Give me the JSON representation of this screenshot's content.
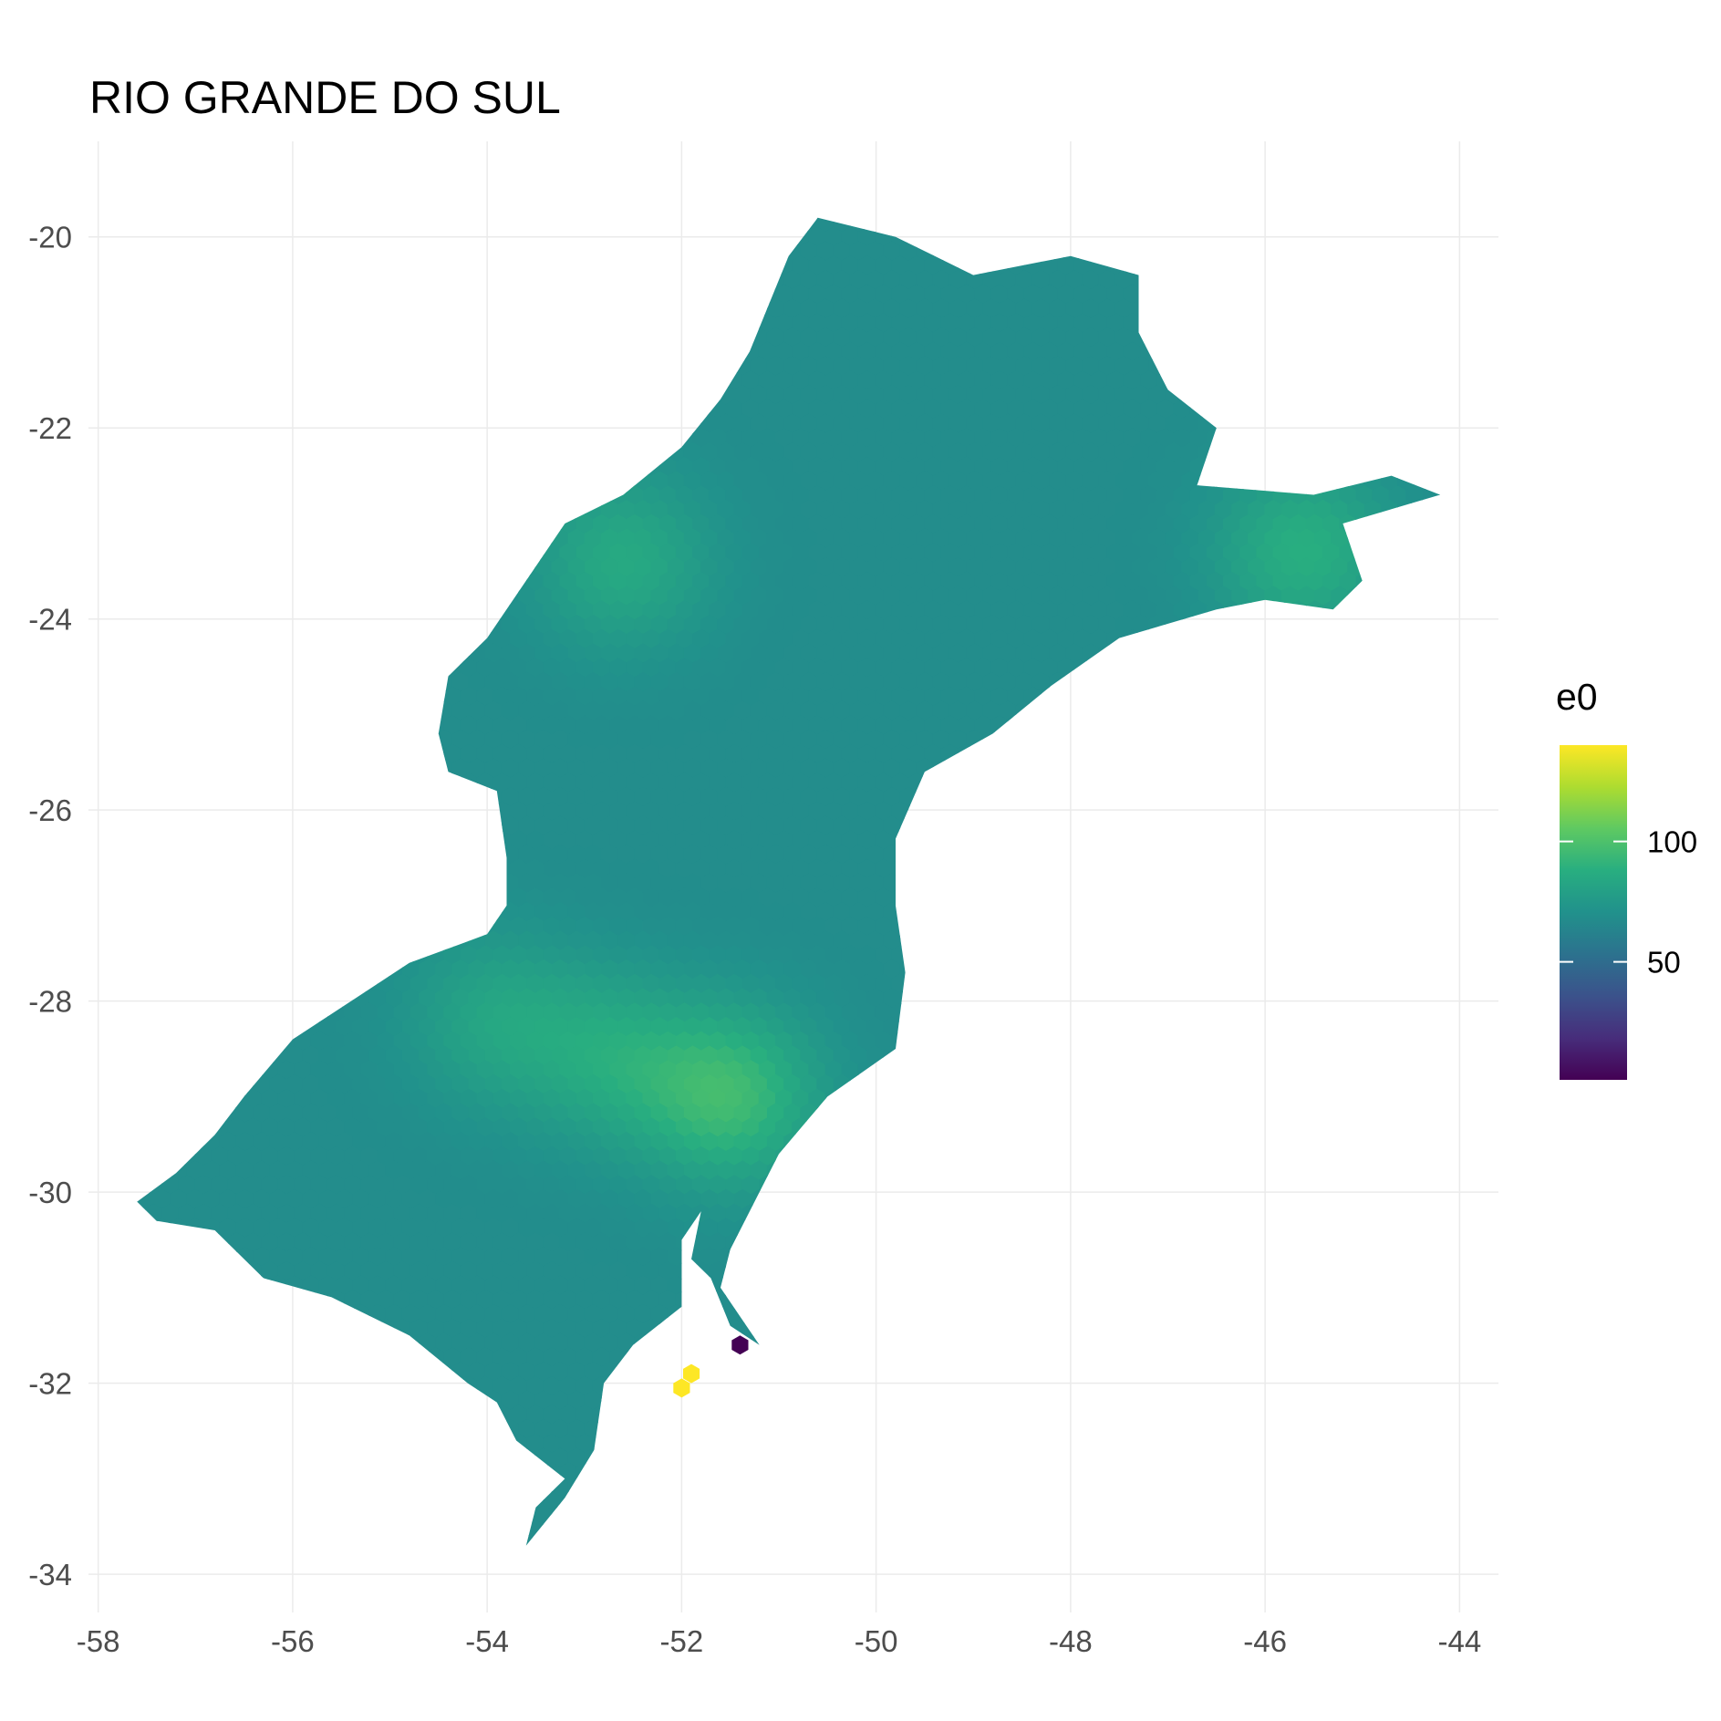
{
  "title": "RIO GRANDE DO SUL",
  "chart_data": {
    "type": "hexbin map",
    "title": "RIO GRANDE DO SUL",
    "xlabel": "",
    "ylabel": "",
    "x_ticks": [
      -58,
      -56,
      -54,
      -52,
      -50,
      -48,
      -46,
      -44
    ],
    "y_ticks": [
      -20,
      -22,
      -24,
      -26,
      -28,
      -30,
      -32,
      -34
    ],
    "xlim": [
      -58.1,
      -43.6
    ],
    "ylim": [
      -34.4,
      -19.0
    ],
    "grid": true,
    "fill_variable": "e0",
    "fill_scale": "viridis",
    "fill_range": [
      1,
      140
    ],
    "legend": {
      "title": "e0",
      "breaks": [
        50,
        100
      ],
      "position": "right"
    },
    "region_outline": [
      [
        -50.6,
        -19.8
      ],
      [
        -49.8,
        -20.0
      ],
      [
        -49.0,
        -20.4
      ],
      [
        -48.0,
        -20.2
      ],
      [
        -47.3,
        -20.4
      ],
      [
        -47.3,
        -21.0
      ],
      [
        -47.0,
        -21.6
      ],
      [
        -46.5,
        -22.0
      ],
      [
        -46.7,
        -22.6
      ],
      [
        -45.5,
        -22.7
      ],
      [
        -44.7,
        -22.5
      ],
      [
        -44.2,
        -22.7
      ],
      [
        -45.2,
        -23.0
      ],
      [
        -45.0,
        -23.6
      ],
      [
        -45.3,
        -23.9
      ],
      [
        -46.0,
        -23.8
      ],
      [
        -46.5,
        -23.9
      ],
      [
        -47.5,
        -24.2
      ],
      [
        -48.2,
        -24.7
      ],
      [
        -48.8,
        -25.2
      ],
      [
        -49.5,
        -25.6
      ],
      [
        -49.8,
        -26.3
      ],
      [
        -49.8,
        -27.0
      ],
      [
        -49.7,
        -27.7
      ],
      [
        -49.8,
        -28.5
      ],
      [
        -50.5,
        -29.0
      ],
      [
        -51.0,
        -29.6
      ],
      [
        -51.3,
        -30.2
      ],
      [
        -51.5,
        -30.6
      ],
      [
        -51.6,
        -31.0
      ],
      [
        -51.2,
        -31.6
      ],
      [
        -51.5,
        -31.4
      ],
      [
        -51.7,
        -30.9
      ],
      [
        -51.9,
        -30.7
      ],
      [
        -51.8,
        -30.2
      ],
      [
        -52.0,
        -30.5
      ],
      [
        -52.0,
        -31.2
      ],
      [
        -52.5,
        -31.6
      ],
      [
        -52.8,
        -32.0
      ],
      [
        -52.9,
        -32.7
      ],
      [
        -53.2,
        -33.2
      ],
      [
        -53.6,
        -33.7
      ],
      [
        -53.5,
        -33.3
      ],
      [
        -53.2,
        -33.0
      ],
      [
        -53.7,
        -32.6
      ],
      [
        -53.9,
        -32.2
      ],
      [
        -54.2,
        -32.0
      ],
      [
        -54.8,
        -31.5
      ],
      [
        -55.6,
        -31.1
      ],
      [
        -56.3,
        -30.9
      ],
      [
        -56.8,
        -30.4
      ],
      [
        -57.4,
        -30.3
      ],
      [
        -57.6,
        -30.1
      ],
      [
        -57.2,
        -29.8
      ],
      [
        -56.8,
        -29.4
      ],
      [
        -56.5,
        -29.0
      ],
      [
        -56.0,
        -28.4
      ],
      [
        -55.4,
        -28.0
      ],
      [
        -54.8,
        -27.6
      ],
      [
        -54.0,
        -27.3
      ],
      [
        -53.8,
        -27.0
      ],
      [
        -53.8,
        -26.5
      ],
      [
        -53.9,
        -25.8
      ],
      [
        -54.4,
        -25.6
      ],
      [
        -54.5,
        -25.2
      ],
      [
        -54.4,
        -24.6
      ],
      [
        -54.0,
        -24.2
      ],
      [
        -53.6,
        -23.6
      ],
      [
        -53.2,
        -23.0
      ],
      [
        -52.6,
        -22.7
      ],
      [
        -52.0,
        -22.2
      ],
      [
        -51.6,
        -21.7
      ],
      [
        -51.3,
        -21.2
      ],
      [
        -51.1,
        -20.7
      ],
      [
        -50.9,
        -20.2
      ]
    ],
    "hotspots": [
      {
        "x": -51.5,
        "y": -29.0,
        "value": 95
      },
      {
        "x": -52.6,
        "y": -23.4,
        "value": 85
      },
      {
        "x": -45.6,
        "y": -23.3,
        "value": 88
      },
      {
        "x": -53.9,
        "y": -28.2,
        "value": 82
      },
      {
        "x": -52.7,
        "y": -28.6,
        "value": 84
      }
    ],
    "highlight_cells": [
      {
        "x": -51.4,
        "y": -31.6,
        "value": 1
      },
      {
        "x": -51.9,
        "y": -31.9,
        "value": 140
      },
      {
        "x": -52.0,
        "y": -32.05,
        "value": 140
      }
    ],
    "base_value": 68
  }
}
